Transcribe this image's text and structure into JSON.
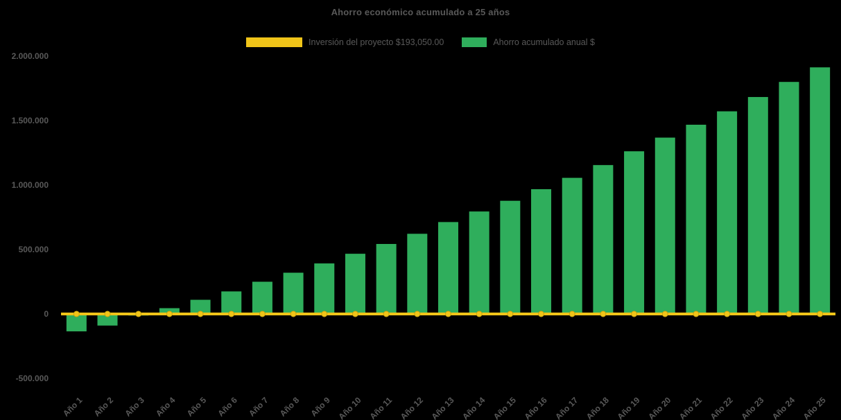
{
  "page": {
    "background_color": "#000000",
    "text_color": "#595959"
  },
  "chart_data": {
    "type": "bar",
    "title": "Ahorro económico acumulado a 25 años",
    "xlabel": "",
    "ylabel": "",
    "grid": false,
    "legend_position": "top",
    "ylim": [
      -500000,
      2000000
    ],
    "y_ticks": {
      "values": [
        -500000,
        0,
        500000,
        1000000,
        1500000,
        2000000
      ],
      "labels": [
        "-500.000",
        "0",
        "500.000",
        "1.000.000",
        "1.500.000",
        "2.000.000"
      ]
    },
    "categories": [
      "Año 1",
      "Año 2",
      "Año 3",
      "Año 4",
      "Año 5",
      "Año 6",
      "Año 7",
      "Año 8",
      "Año 9",
      "Año 10",
      "Año 11",
      "Año 12",
      "Año 13",
      "Año 14",
      "Año 15",
      "Año 16",
      "Año 17",
      "Año 18",
      "Año 19",
      "Año 20",
      "Año 21",
      "Año 22",
      "Año 23",
      "Año 24",
      "Año 25"
    ],
    "series": [
      {
        "name": "Inversión del proyecto $193,050.00",
        "type": "line",
        "color": "#F0C419",
        "marker_color": "#F0C419",
        "values": [
          0,
          0,
          0,
          0,
          0,
          0,
          0,
          0,
          0,
          0,
          0,
          0,
          0,
          0,
          0,
          0,
          0,
          0,
          0,
          0,
          0,
          0,
          0,
          0,
          0
        ]
      },
      {
        "name": "Ahorro acumulado anual $",
        "type": "bar",
        "color": "#2FAE5C",
        "values": [
          -135000,
          -90000,
          -12000,
          45000,
          110000,
          175000,
          250000,
          320000,
          392000,
          467000,
          543000,
          622000,
          713000,
          795000,
          878000,
          968000,
          1056000,
          1155000,
          1262000,
          1368000,
          1468000,
          1572000,
          1683000,
          1800000,
          1913000
        ]
      }
    ]
  }
}
